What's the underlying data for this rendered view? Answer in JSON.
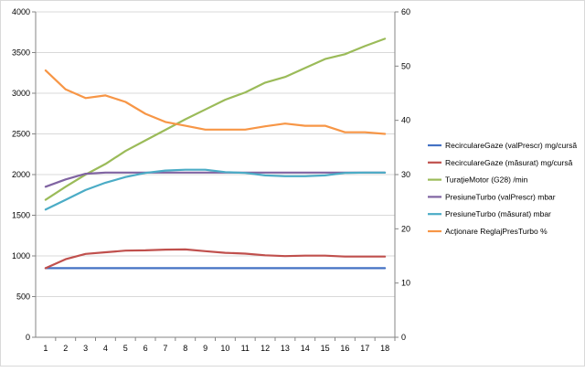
{
  "chart_data": {
    "type": "line",
    "categories": [
      "1",
      "2",
      "3",
      "4",
      "5",
      "6",
      "7",
      "8",
      "9",
      "10",
      "11",
      "12",
      "13",
      "14",
      "15",
      "16",
      "17",
      "18"
    ],
    "y_left": {
      "min": 0,
      "max": 4000,
      "step": 500,
      "ticks": [
        "0",
        "500",
        "1000",
        "1500",
        "2000",
        "2500",
        "3000",
        "3500",
        "4000"
      ]
    },
    "y_right": {
      "min": 0,
      "max": 60,
      "step": 10,
      "ticks": [
        "0",
        "10",
        "20",
        "30",
        "40",
        "50",
        "60"
      ]
    },
    "grid": true,
    "legend_position": "right",
    "series": [
      {
        "name": "RecirculareGaze (valPrescr)  mg/cursă",
        "axis": "left",
        "color": "#4472c4",
        "values": [
          850,
          850,
          850,
          850,
          850,
          850,
          850,
          850,
          850,
          850,
          850,
          850,
          850,
          850,
          850,
          850,
          850,
          850
        ]
      },
      {
        "name": "RecirculareGaze (măsurat)  mg/cursă",
        "axis": "left",
        "color": "#c0504d",
        "values": [
          850,
          960,
          1025,
          1045,
          1065,
          1068,
          1078,
          1080,
          1058,
          1038,
          1028,
          1008,
          998,
          1003,
          1003,
          992,
          992,
          992
        ]
      },
      {
        "name": "TuraţieMotor (G28)  /min",
        "axis": "left",
        "color": "#9bbb59",
        "values": [
          1690,
          1850,
          2000,
          2130,
          2290,
          2420,
          2550,
          2680,
          2800,
          2920,
          3010,
          3130,
          3200,
          3310,
          3420,
          3480,
          3580,
          3670
        ]
      },
      {
        "name": "PresiuneTurbo (valPrescr)  mbar",
        "axis": "left",
        "color": "#8064a2",
        "values": [
          1850,
          1940,
          2010,
          2025,
          2025,
          2025,
          2025,
          2025,
          2025,
          2025,
          2025,
          2025,
          2025,
          2025,
          2025,
          2025,
          2025,
          2025
        ]
      },
      {
        "name": "PresiuneTurbo (măsurat)  mbar",
        "axis": "left",
        "color": "#4bacc6",
        "values": [
          1570,
          1690,
          1810,
          1900,
          1970,
          2020,
          2050,
          2060,
          2060,
          2030,
          2020,
          1990,
          1980,
          1980,
          1990,
          2020,
          2025,
          2025
        ]
      },
      {
        "name": "Acţionare ReglajPresTurbo  %",
        "axis": "right",
        "color": "#f79646",
        "values": [
          49.2,
          45.7,
          44.1,
          44.6,
          43.4,
          41.2,
          39.7,
          39.0,
          38.3,
          38.3,
          38.3,
          38.9,
          39.4,
          39.0,
          39.0,
          37.8,
          37.8,
          37.5
        ]
      }
    ]
  }
}
